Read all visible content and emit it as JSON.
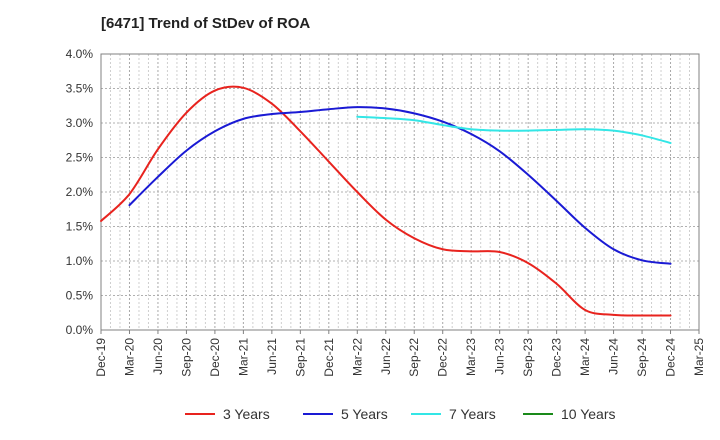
{
  "chart_data": {
    "type": "line",
    "title": "[6471]  Trend of StDev of ROA",
    "xlabel": "",
    "ylabel": "",
    "x": [
      "Dec-19",
      "Mar-20",
      "Jun-20",
      "Sep-20",
      "Dec-20",
      "Mar-21",
      "Jun-21",
      "Sep-21",
      "Dec-21",
      "Mar-22",
      "Jun-22",
      "Sep-22",
      "Dec-22",
      "Mar-23",
      "Jun-23",
      "Sep-23",
      "Dec-23",
      "Mar-24",
      "Jun-24",
      "Sep-24",
      "Dec-24",
      "Mar-25"
    ],
    "y_ticks": [
      "0.0%",
      "0.5%",
      "1.0%",
      "1.5%",
      "2.0%",
      "2.5%",
      "3.0%",
      "3.5%",
      "4.0%"
    ],
    "ylim": [
      0,
      4
    ],
    "y_unit": "%",
    "grid": true,
    "legend_position": "bottom",
    "series": [
      {
        "name": "3 Years",
        "color": "#e8231e",
        "values": [
          1.58,
          1.97,
          2.62,
          3.15,
          3.47,
          3.51,
          3.28,
          2.88,
          2.44,
          2.0,
          1.6,
          1.33,
          1.17,
          1.14,
          1.13,
          0.97,
          0.67,
          0.29,
          0.22,
          0.21,
          0.21,
          null
        ]
      },
      {
        "name": "5 Years",
        "color": "#1a1ad4",
        "values": [
          null,
          1.81,
          2.22,
          2.6,
          2.88,
          3.06,
          3.13,
          3.16,
          3.2,
          3.23,
          3.21,
          3.14,
          3.02,
          2.84,
          2.59,
          2.25,
          1.87,
          1.48,
          1.17,
          1.01,
          0.96,
          null
        ]
      },
      {
        "name": "7 Years",
        "color": "#33e6e6",
        "values": [
          null,
          null,
          null,
          null,
          null,
          null,
          null,
          null,
          null,
          3.09,
          3.07,
          3.04,
          2.97,
          2.91,
          2.89,
          2.89,
          2.9,
          2.91,
          2.89,
          2.82,
          2.71,
          null
        ]
      },
      {
        "name": "10 Years",
        "color": "#1a8a1a",
        "values": [
          null,
          null,
          null,
          null,
          null,
          null,
          null,
          null,
          null,
          null,
          null,
          null,
          null,
          null,
          null,
          null,
          null,
          null,
          null,
          null,
          null,
          null
        ]
      }
    ]
  }
}
